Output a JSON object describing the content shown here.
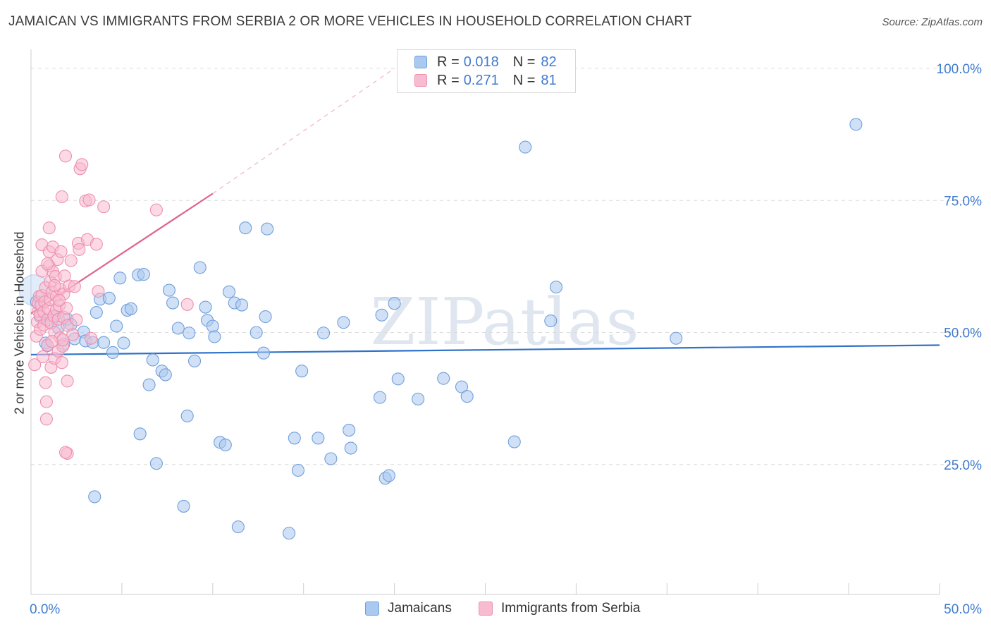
{
  "title": "JAMAICAN VS IMMIGRANTS FROM SERBIA 2 OR MORE VEHICLES IN HOUSEHOLD CORRELATION CHART",
  "source": "Source: ZipAtlas.com",
  "watermark": "ZIPatlas",
  "legend": {
    "r_label": "R =",
    "n_label": "N =",
    "series": [
      {
        "name": "Jamaicans",
        "r": "0.018",
        "n": "82"
      },
      {
        "name": "Immigrants from Serbia",
        "r": "0.271",
        "n": "81"
      }
    ]
  },
  "chart_data": {
    "type": "scatter",
    "title": "JAMAICAN VS IMMIGRANTS FROM SERBIA 2 OR MORE VEHICLES IN HOUSEHOLD CORRELATION CHART",
    "xlabel": "",
    "ylabel": "2 or more Vehicles in Household",
    "xlim": [
      0,
      50
    ],
    "ylim": [
      0,
      105
    ],
    "x_tick_labels": [
      "0.0%",
      "50.0%"
    ],
    "y_ticks": [
      25,
      50,
      75,
      100
    ],
    "y_tick_labels": [
      "25.0%",
      "50.0%",
      "75.0%",
      "100.0%"
    ],
    "grid": true,
    "colors": {
      "jamaicans_fill": "#a9c9f0",
      "jamaicans_stroke": "#6f9fdb",
      "jamaicans_line": "#2f72c9",
      "serbia_fill": "#f7bcd0",
      "serbia_stroke": "#ee8fb0",
      "serbia_line": "#e0628f",
      "tick_label": "#3f7bd0"
    },
    "series": [
      {
        "name": "Jamaicans",
        "trend": {
          "x0": 0,
          "y0": 45.8,
          "x1": 50,
          "y1": 47.6
        },
        "points": [
          [
            0.3,
            55.8
          ],
          [
            0.5,
            53.0
          ],
          [
            0.8,
            48.0
          ],
          [
            0.9,
            47.5
          ],
          [
            1.1,
            51.8
          ],
          [
            1.3,
            53.1
          ],
          [
            1.5,
            50.9
          ],
          [
            1.8,
            47.8
          ],
          [
            2.0,
            52.5
          ],
          [
            2.2,
            51.5
          ],
          [
            2.4,
            48.8
          ],
          [
            2.9,
            50.1
          ],
          [
            3.0,
            48.4
          ],
          [
            3.4,
            48.1
          ],
          [
            3.5,
            18.9
          ],
          [
            3.6,
            53.8
          ],
          [
            3.8,
            56.3
          ],
          [
            4.0,
            48.1
          ],
          [
            4.3,
            56.5
          ],
          [
            4.5,
            46.2
          ],
          [
            4.7,
            51.2
          ],
          [
            4.9,
            60.3
          ],
          [
            5.1,
            48.0
          ],
          [
            5.3,
            54.2
          ],
          [
            5.5,
            54.5
          ],
          [
            5.9,
            60.9
          ],
          [
            6.0,
            30.8
          ],
          [
            6.2,
            61.0
          ],
          [
            6.5,
            40.1
          ],
          [
            6.7,
            44.8
          ],
          [
            6.9,
            25.2
          ],
          [
            7.2,
            42.7
          ],
          [
            7.4,
            42.0
          ],
          [
            7.6,
            58.0
          ],
          [
            7.8,
            55.6
          ],
          [
            8.1,
            50.8
          ],
          [
            8.4,
            17.1
          ],
          [
            8.6,
            34.2
          ],
          [
            8.7,
            49.9
          ],
          [
            9.0,
            44.6
          ],
          [
            9.3,
            62.3
          ],
          [
            9.6,
            54.8
          ],
          [
            9.7,
            52.3
          ],
          [
            10.0,
            51.2
          ],
          [
            10.1,
            49.2
          ],
          [
            10.4,
            29.2
          ],
          [
            10.7,
            28.7
          ],
          [
            10.9,
            57.7
          ],
          [
            11.2,
            55.6
          ],
          [
            11.4,
            13.2
          ],
          [
            11.6,
            55.2
          ],
          [
            11.8,
            69.8
          ],
          [
            12.4,
            50.0
          ],
          [
            12.8,
            46.1
          ],
          [
            12.9,
            53.0
          ],
          [
            13.0,
            69.6
          ],
          [
            14.2,
            12.0
          ],
          [
            14.5,
            30.0
          ],
          [
            14.7,
            23.9
          ],
          [
            14.9,
            42.7
          ],
          [
            15.8,
            30.0
          ],
          [
            16.1,
            49.9
          ],
          [
            16.5,
            26.1
          ],
          [
            17.2,
            51.9
          ],
          [
            17.5,
            31.5
          ],
          [
            17.6,
            28.1
          ],
          [
            19.2,
            37.7
          ],
          [
            19.3,
            53.3
          ],
          [
            19.5,
            22.4
          ],
          [
            19.7,
            22.9
          ],
          [
            20.0,
            55.5
          ],
          [
            20.2,
            41.2
          ],
          [
            21.3,
            37.4
          ],
          [
            22.7,
            41.3
          ],
          [
            23.7,
            39.7
          ],
          [
            24.0,
            37.9
          ],
          [
            26.6,
            29.3
          ],
          [
            27.2,
            85.1
          ],
          [
            28.6,
            52.2
          ],
          [
            28.9,
            58.6
          ],
          [
            35.5,
            48.9
          ],
          [
            45.4,
            89.4
          ]
        ]
      },
      {
        "name": "Immigrants from Serbia",
        "trend": {
          "x0": 0,
          "y0": 53.6,
          "x1": 10,
          "y1": 76.3,
          "dashed_to": {
            "x": 20,
            "y": 100
          }
        },
        "points": [
          [
            0.2,
            43.9
          ],
          [
            0.3,
            49.3
          ],
          [
            0.35,
            52.0
          ],
          [
            0.4,
            54.0
          ],
          [
            0.4,
            55.5
          ],
          [
            0.45,
            56.8
          ],
          [
            0.5,
            50.6
          ],
          [
            0.5,
            53.3
          ],
          [
            0.55,
            55.2
          ],
          [
            0.6,
            57.0
          ],
          [
            0.6,
            66.6
          ],
          [
            0.65,
            45.4
          ],
          [
            0.7,
            51.4
          ],
          [
            0.7,
            53.9
          ],
          [
            0.75,
            55.8
          ],
          [
            0.8,
            40.5
          ],
          [
            0.8,
            58.5
          ],
          [
            0.85,
            33.6
          ],
          [
            0.85,
            36.9
          ],
          [
            0.9,
            47.6
          ],
          [
            0.9,
            52.4
          ],
          [
            0.95,
            54.5
          ],
          [
            1.0,
            62.6
          ],
          [
            1.0,
            65.3
          ],
          [
            1.0,
            69.8
          ],
          [
            1.05,
            56.2
          ],
          [
            1.05,
            59.6
          ],
          [
            1.1,
            43.4
          ],
          [
            1.1,
            51.8
          ],
          [
            1.15,
            57.6
          ],
          [
            1.2,
            61.5
          ],
          [
            1.2,
            66.2
          ],
          [
            1.25,
            53.1
          ],
          [
            1.3,
            45.1
          ],
          [
            1.3,
            50.0
          ],
          [
            1.35,
            60.6
          ],
          [
            1.4,
            54.3
          ],
          [
            1.4,
            56.9
          ],
          [
            1.45,
            63.8
          ],
          [
            1.5,
            46.5
          ],
          [
            1.5,
            52.5
          ],
          [
            1.55,
            55.1
          ],
          [
            1.6,
            49.0
          ],
          [
            1.6,
            58.2
          ],
          [
            1.65,
            65.3
          ],
          [
            1.7,
            75.7
          ],
          [
            1.7,
            44.3
          ],
          [
            1.75,
            47.4
          ],
          [
            1.8,
            52.9
          ],
          [
            1.8,
            57.3
          ],
          [
            1.85,
            60.7
          ],
          [
            1.9,
            83.4
          ],
          [
            1.95,
            54.6
          ],
          [
            2.0,
            40.8
          ],
          [
            2.0,
            51.3
          ],
          [
            2.1,
            58.8
          ],
          [
            2.2,
            63.6
          ],
          [
            2.3,
            49.6
          ],
          [
            2.4,
            58.7
          ],
          [
            2.5,
            52.4
          ],
          [
            2.6,
            66.9
          ],
          [
            2.65,
            65.7
          ],
          [
            2.7,
            81.0
          ],
          [
            2.8,
            81.8
          ],
          [
            2.0,
            27.1
          ],
          [
            1.9,
            27.3
          ],
          [
            1.75,
            48.6
          ],
          [
            1.55,
            56.1
          ],
          [
            1.3,
            58.9
          ],
          [
            3.0,
            74.9
          ],
          [
            3.1,
            67.6
          ],
          [
            3.2,
            75.1
          ],
          [
            3.3,
            48.9
          ],
          [
            3.6,
            66.7
          ],
          [
            3.7,
            57.8
          ],
          [
            4.0,
            73.8
          ],
          [
            6.9,
            73.2
          ],
          [
            8.6,
            55.3
          ],
          [
            0.6,
            61.6
          ],
          [
            0.9,
            63.0
          ],
          [
            1.15,
            48.3
          ]
        ]
      }
    ]
  }
}
